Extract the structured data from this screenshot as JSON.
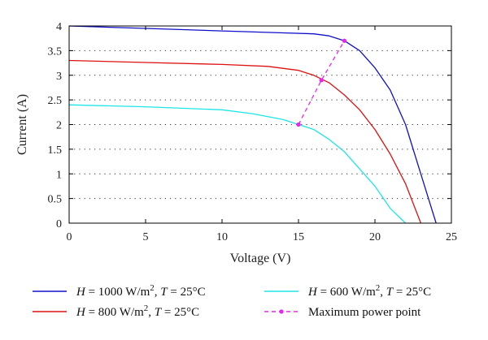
{
  "chart_data": {
    "type": "line",
    "xlabel": "Voltage (V)",
    "ylabel": "Current (A)",
    "xlim": [
      0,
      25
    ],
    "ylim": [
      0,
      4
    ],
    "xticks": [
      "0",
      "5",
      "10",
      "15",
      "20",
      "25"
    ],
    "yticks": [
      "0",
      "0.5",
      "1",
      "1.5",
      "2",
      "2.5",
      "3",
      "3.5",
      "4"
    ],
    "grid": "horizontal dotted",
    "legend_position": "bottom",
    "series": [
      {
        "name": "H = 1000 W/m^2, T = 25°C",
        "label_parts": {
          "var": "H",
          "irr": " = 1000 W/m",
          "sup": "2",
          "sep": ", ",
          "tvar": "T",
          "temp": " = 25°C"
        },
        "color": "#1010c8",
        "x": [
          0,
          5,
          10,
          14,
          16,
          17,
          18,
          19,
          20,
          21,
          22,
          23,
          24
        ],
        "y": [
          4.0,
          3.95,
          3.9,
          3.86,
          3.84,
          3.8,
          3.7,
          3.5,
          3.15,
          2.7,
          2.0,
          1.0,
          0
        ]
      },
      {
        "name": "H = 800 W/m^2, T = 25°C",
        "label_parts": {
          "var": "H",
          "irr": " = 800 W/m",
          "sup": "2",
          "sep": ", ",
          "tvar": "T",
          "temp": " = 25°C"
        },
        "color": "#dd1111",
        "x": [
          0,
          5,
          10,
          13,
          15,
          16,
          17,
          18,
          19,
          20,
          21,
          22,
          23
        ],
        "y": [
          3.3,
          3.26,
          3.22,
          3.18,
          3.1,
          3.0,
          2.85,
          2.6,
          2.3,
          1.9,
          1.4,
          0.8,
          0
        ]
      },
      {
        "name": "H = 600 W/m^2, T = 25°C",
        "label_parts": {
          "var": "H",
          "irr": " = 600 W/m",
          "sup": "2",
          "sep": ", ",
          "tvar": "T",
          "temp": " = 25°C"
        },
        "color": "#1ee6e6",
        "x": [
          0,
          5,
          10,
          12,
          14,
          15,
          16,
          17,
          18,
          19,
          20,
          21,
          22
        ],
        "y": [
          2.4,
          2.36,
          2.3,
          2.22,
          2.1,
          2.0,
          1.9,
          1.7,
          1.45,
          1.1,
          0.75,
          0.3,
          0
        ]
      },
      {
        "name": "Maximum power point",
        "color": "#ee22ee",
        "dashed": true,
        "markers": true,
        "x": [
          15,
          16.5,
          18
        ],
        "y": [
          2.0,
          2.9,
          3.7
        ]
      }
    ]
  }
}
